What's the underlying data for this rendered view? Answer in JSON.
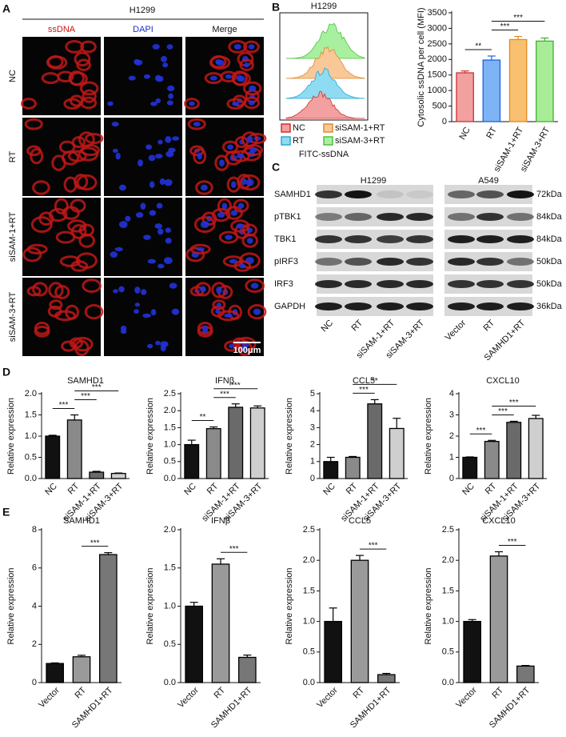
{
  "panel_labels": [
    "A",
    "B",
    "C",
    "D",
    "E"
  ],
  "panel_a": {
    "title": "H1299",
    "columns": [
      {
        "name": "ssDNA",
        "color": "#d01010"
      },
      {
        "name": "DAPI",
        "color": "#1a2fd0"
      },
      {
        "name": "Merge",
        "color": "#111111"
      }
    ],
    "rows": [
      "NC",
      "RT",
      "siSAM-1+RT",
      "siSAM-3+RT"
    ],
    "scale_bar": "100μm"
  },
  "panel_b_flow": {
    "title": "H1299",
    "xlabel": "FITC-ssDNA",
    "legend": [
      {
        "name": "NC",
        "color": "#f2a0a0",
        "edge": "#d03030"
      },
      {
        "name": "RT",
        "color": "#8fdcf2",
        "edge": "#2aa8d0"
      },
      {
        "name": "siSAM-1+RT",
        "color": "#f8c898",
        "edge": "#e08a30"
      },
      {
        "name": "siSAM-3+RT",
        "color": "#a8f0a0",
        "edge": "#50c040"
      }
    ]
  },
  "panel_c_blot": {
    "groups": [
      {
        "title": "H1299",
        "lanes": [
          "NC",
          "RT",
          "siSAM-1+RT",
          "siSAM-3+RT"
        ]
      },
      {
        "title": "A549",
        "lanes": [
          "Vector",
          "RT",
          "SAMHD1+RT"
        ]
      }
    ],
    "proteins": [
      "SAMHD1",
      "pTBK1",
      "TBK1",
      "pIRF3",
      "IRF3",
      "GAPDH"
    ],
    "sizes": [
      "72kDa",
      "84kDa",
      "84kDa",
      "50kDa",
      "50kDa",
      "36kDa"
    ]
  },
  "chart_data": [
    {
      "type": "bar",
      "ylabel": "Cytosolic ssDNA per cell (MFI)",
      "categories": [
        "NC",
        "RT",
        "siSAM-1+RT",
        "siSAM-3+RT"
      ],
      "values": [
        1570,
        1980,
        2640,
        2590
      ],
      "errors": [
        60,
        130,
        100,
        100
      ],
      "colors": [
        "#f2a0a0",
        "#7eb4f6",
        "#f8c070",
        "#a8ec98"
      ],
      "edgecolors": [
        "#d03030",
        "#2060e0",
        "#e08a20",
        "#40b030"
      ],
      "ylim": [
        0,
        3500
      ],
      "yticks": [
        0,
        500,
        1000,
        1500,
        2000,
        2500,
        3000,
        3500
      ],
      "annotations": [
        {
          "label": "**",
          "categories": [
            "NC",
            "RT"
          ]
        },
        {
          "label": "***",
          "categories": [
            "RT",
            "siSAM-1+RT"
          ]
        },
        {
          "label": "***",
          "categories": [
            "RT",
            "siSAM-3+RT"
          ]
        }
      ]
    },
    {
      "type": "bar",
      "title": "SAMHD1",
      "ylabel": "Relative expression",
      "categories": [
        "NC",
        "RT",
        "siSAM-1+RT",
        "siSAM-3+RT"
      ],
      "values": [
        1.0,
        1.38,
        0.15,
        0.12
      ],
      "errors": [
        0.02,
        0.12,
        0.02,
        0.01
      ],
      "colors": [
        "#111111",
        "#8a8a8a",
        "#6a6a6a",
        "#cfcfcf"
      ],
      "edgecolor": "#000000",
      "ylim": [
        0,
        2.0
      ],
      "yticks": [
        {
          "value": 0,
          "label": "0.0"
        },
        0.5,
        {
          "value": 1,
          "label": "1.0"
        },
        1.5,
        {
          "value": 2,
          "label": "2.0"
        }
      ],
      "annotations": [
        {
          "label": "***",
          "categories": [
            "NC",
            "RT"
          ]
        },
        {
          "label": "***",
          "categories": [
            "RT",
            "siSAM-1+RT"
          ]
        },
        {
          "label": "***",
          "categories": [
            "RT",
            "siSAM-3+RT"
          ]
        }
      ]
    },
    {
      "type": "bar",
      "title": "IFNβ",
      "ylabel": "Relative expression",
      "categories": [
        "NC",
        "RT",
        "siSAM-1+RT",
        "siSAM-3+RT"
      ],
      "values": [
        1.0,
        1.47,
        2.1,
        2.08
      ],
      "errors": [
        0.13,
        0.05,
        0.1,
        0.06
      ],
      "colors": [
        "#111111",
        "#8a8a8a",
        "#6a6a6a",
        "#cfcfcf"
      ],
      "edgecolor": "#000000",
      "ylim": [
        0,
        2.5
      ],
      "yticks": [
        {
          "value": 0,
          "label": "0.0"
        },
        0.5,
        {
          "value": 1,
          "label": "1.0"
        },
        1.5,
        {
          "value": 2,
          "label": "2.0"
        },
        2.5
      ],
      "annotations": [
        {
          "label": "**",
          "categories": [
            "NC",
            "RT"
          ]
        },
        {
          "label": "***",
          "categories": [
            "RT",
            "siSAM-1+RT"
          ]
        },
        {
          "label": "***",
          "categories": [
            "RT",
            "siSAM-3+RT"
          ]
        }
      ]
    },
    {
      "type": "bar",
      "title": "CCL5",
      "ylabel": "Relative expression",
      "categories": [
        "NC",
        "RT",
        "siSAM-1+RT",
        "siSAM-3+RT"
      ],
      "values": [
        1.0,
        1.25,
        4.4,
        2.95
      ],
      "errors": [
        0.25,
        0.05,
        0.25,
        0.6
      ],
      "colors": [
        "#111111",
        "#8a8a8a",
        "#6a6a6a",
        "#cfcfcf"
      ],
      "edgecolor": "#000000",
      "ylim": [
        0,
        5
      ],
      "yticks": [
        0,
        1,
        2,
        3,
        4,
        5
      ],
      "annotations": [
        {
          "label": "***",
          "categories": [
            "RT",
            "siSAM-1+RT"
          ]
        },
        {
          "label": "**",
          "categories": [
            "RT",
            "siSAM-3+RT"
          ]
        }
      ]
    },
    {
      "type": "bar",
      "title": "CXCL10",
      "ylabel": "Relative expression",
      "categories": [
        "NC",
        "RT",
        "siSAM-1+RT",
        "siSAM-3+RT"
      ],
      "values": [
        1.0,
        1.75,
        2.65,
        2.83
      ],
      "errors": [
        0.02,
        0.05,
        0.05,
        0.15
      ],
      "colors": [
        "#111111",
        "#8a8a8a",
        "#6a6a6a",
        "#cfcfcf"
      ],
      "edgecolor": "#000000",
      "ylim": [
        0,
        4
      ],
      "yticks": [
        0,
        1,
        2,
        3,
        4
      ],
      "annotations": [
        {
          "label": "***",
          "categories": [
            "NC",
            "RT"
          ]
        },
        {
          "label": "***",
          "categories": [
            "RT",
            "siSAM-1+RT"
          ]
        },
        {
          "label": "***",
          "categories": [
            "RT",
            "siSAM-3+RT"
          ]
        }
      ]
    },
    {
      "type": "bar",
      "title": "SAMHD1",
      "ylabel": "Relative expression",
      "categories": [
        "Vector",
        "RT",
        "SAMHD1+RT"
      ],
      "values": [
        1.0,
        1.35,
        6.7
      ],
      "errors": [
        0.03,
        0.08,
        0.1
      ],
      "colors": [
        "#111111",
        "#9a9a9a",
        "#777777"
      ],
      "edgecolor": "#000000",
      "ylim": [
        0,
        8
      ],
      "yticks": [
        0,
        2,
        4,
        6,
        8
      ],
      "annotations": [
        {
          "label": "***",
          "categories": [
            "RT",
            "SAMHD1+RT"
          ]
        }
      ]
    },
    {
      "type": "bar",
      "title": "IFNβ",
      "ylabel": "Relative expression",
      "categories": [
        "Vector",
        "RT",
        "SAMHD1+RT"
      ],
      "values": [
        1.0,
        1.55,
        0.33
      ],
      "errors": [
        0.05,
        0.07,
        0.03
      ],
      "colors": [
        "#111111",
        "#9a9a9a",
        "#777777"
      ],
      "edgecolor": "#000000",
      "ylim": [
        0,
        2.0
      ],
      "yticks": [
        {
          "value": 0,
          "label": "0.0"
        },
        0.5,
        {
          "value": 1,
          "label": "1.0"
        },
        1.5,
        {
          "value": 2,
          "label": "2.0"
        }
      ],
      "annotations": [
        {
          "label": "***",
          "categories": [
            "RT",
            "SAMHD1+RT"
          ]
        }
      ]
    },
    {
      "type": "bar",
      "title": "CCL5",
      "ylabel": "Relative expression",
      "categories": [
        "Vector",
        "RT",
        "SAMHD1+RT"
      ],
      "values": [
        1.0,
        2.0,
        0.13
      ],
      "errors": [
        0.22,
        0.08,
        0.02
      ],
      "colors": [
        "#111111",
        "#9a9a9a",
        "#777777"
      ],
      "edgecolor": "#000000",
      "ylim": [
        0,
        2.5
      ],
      "yticks": [
        {
          "value": 0,
          "label": "0.0"
        },
        0.5,
        {
          "value": 1,
          "label": "1.0"
        },
        1.5,
        {
          "value": 2,
          "label": "2.0"
        },
        2.5
      ],
      "annotations": [
        {
          "label": "***",
          "categories": [
            "RT",
            "SAMHD1+RT"
          ]
        }
      ]
    },
    {
      "type": "bar",
      "title": "CXCL10",
      "ylabel": "Relative expression",
      "categories": [
        "Vector",
        "RT",
        "SAMHD1+RT"
      ],
      "values": [
        1.0,
        2.07,
        0.27
      ],
      "errors": [
        0.03,
        0.07,
        0.01
      ],
      "colors": [
        "#111111",
        "#9a9a9a",
        "#777777"
      ],
      "edgecolor": "#000000",
      "ylim": [
        0,
        2.5
      ],
      "yticks": [
        {
          "value": 0,
          "label": "0.0"
        },
        0.5,
        {
          "value": 1,
          "label": "1.0"
        },
        1.5,
        {
          "value": 2,
          "label": "2.0"
        },
        2.5
      ],
      "annotations": [
        {
          "label": "***",
          "categories": [
            "RT",
            "SAMHD1+RT"
          ]
        }
      ]
    }
  ]
}
